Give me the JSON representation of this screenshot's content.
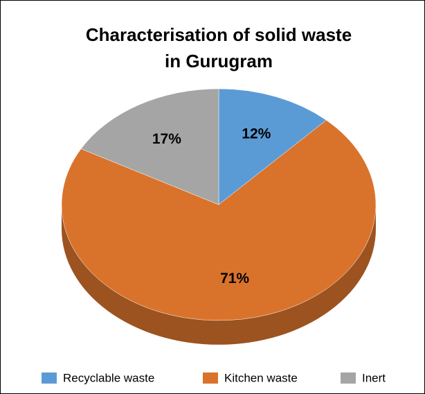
{
  "chart_data": {
    "type": "pie3d",
    "title": [
      "Characterisation of solid waste",
      "in Gurugram"
    ],
    "categories": [
      "Recyclable waste",
      "Kitchen waste",
      "Inert"
    ],
    "values": [
      12,
      71,
      17
    ],
    "value_labels": [
      "12%",
      "71%",
      "17%"
    ],
    "colors": [
      "#5b9bd5",
      "#d9732c",
      "#a5a5a5"
    ],
    "legend": "bottom"
  }
}
